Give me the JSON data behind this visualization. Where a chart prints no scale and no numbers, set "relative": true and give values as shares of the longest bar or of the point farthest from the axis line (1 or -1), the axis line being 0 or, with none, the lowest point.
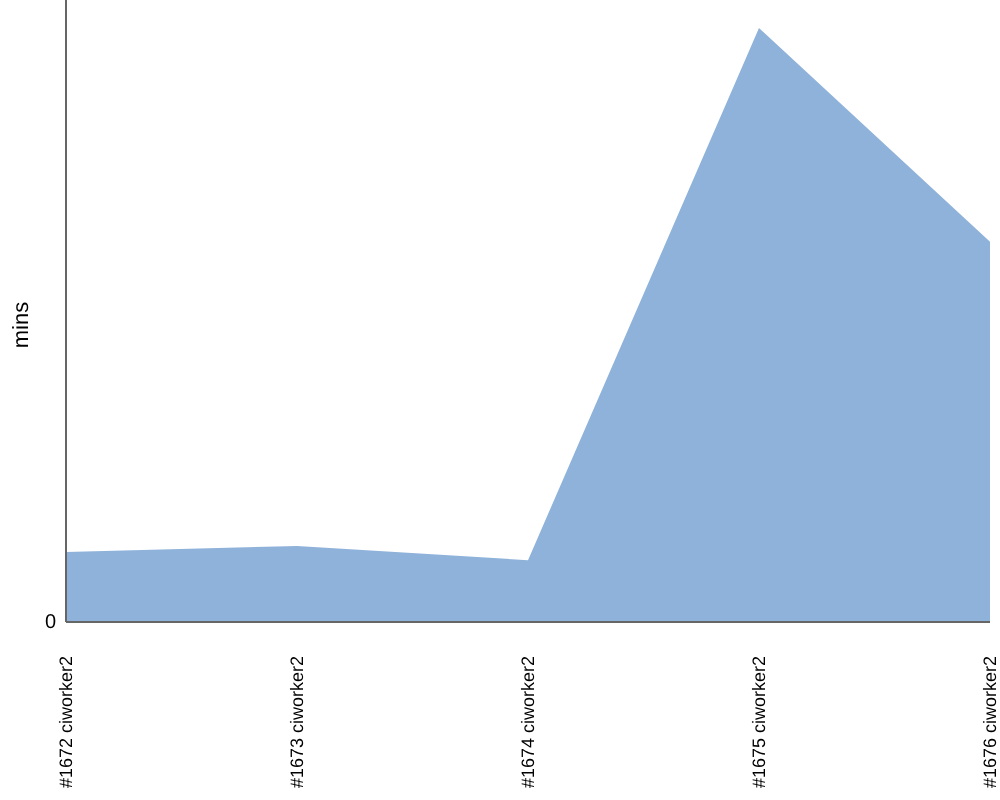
{
  "chart_data": {
    "type": "area",
    "ylabel": "mins",
    "relative": true,
    "annotations": [
      "0"
    ],
    "categories": [
      "#1672 ciworker2",
      "#1673 ciworker2",
      "#1674 ciworker2",
      "#1675 ciworker2",
      "#1676 ciworker2"
    ],
    "series": [
      {
        "color": "#8fb2da",
        "values": [
          0.118,
          0.128,
          0.104,
          1,
          0.64
        ]
      }
    ]
  }
}
